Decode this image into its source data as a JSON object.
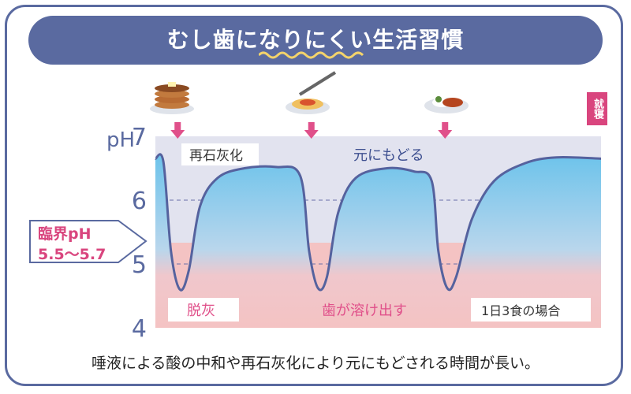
{
  "title": "むし歯になりにくい生活習慣",
  "caption": "唾液による酸の中和や再石灰化により元にもどされる時間が長い。",
  "sleep_label": "就寝",
  "critical": {
    "line1": "臨界pH",
    "line2": "5.5〜5.7"
  },
  "labels": {
    "remineralization": "再石灰化",
    "restore": "元にもどる",
    "demineralization": "脱灰",
    "dissolve": "歯が溶け出す",
    "meals": "1日3食の場合"
  },
  "axis": {
    "ph_prefix": "pH"
  },
  "meal_icons": [
    "pancake-icon",
    "spaghetti-icon",
    "curry-plate-icon"
  ],
  "colors": {
    "frame": "#5a6aa0",
    "curve": "#55629e",
    "safe_zone": "#e2e3ef",
    "danger_zone": "#f4c3c3",
    "fill_top": "#6cc3eb",
    "fill_bottom": "#f4c3c3",
    "accent_pink": "#e0508a"
  },
  "chart_data": {
    "type": "line",
    "ylabel": "pH",
    "yticks": [
      7,
      6,
      5,
      4
    ],
    "ylim": [
      4,
      7
    ],
    "critical_ph": [
      5.5,
      5.7
    ],
    "meal_times": [
      0.05,
      0.35,
      0.65
    ],
    "series": [
      {
        "values": [
          [
            0.0,
            6.65
          ],
          [
            0.018,
            6.6
          ],
          [
            0.035,
            5.2
          ],
          [
            0.055,
            4.6
          ],
          [
            0.075,
            4.9
          ],
          [
            0.1,
            5.9
          ],
          [
            0.14,
            6.35
          ],
          [
            0.2,
            6.5
          ],
          [
            0.27,
            6.52
          ],
          [
            0.325,
            6.38
          ],
          [
            0.345,
            5.2
          ],
          [
            0.365,
            4.62
          ],
          [
            0.385,
            4.8
          ],
          [
            0.41,
            5.8
          ],
          [
            0.45,
            6.35
          ],
          [
            0.52,
            6.5
          ],
          [
            0.58,
            6.45
          ],
          [
            0.62,
            6.3
          ],
          [
            0.635,
            5.2
          ],
          [
            0.655,
            4.62
          ],
          [
            0.675,
            4.8
          ],
          [
            0.71,
            5.7
          ],
          [
            0.76,
            6.3
          ],
          [
            0.83,
            6.58
          ],
          [
            0.9,
            6.67
          ],
          [
            1.0,
            6.65
          ]
        ]
      }
    ]
  }
}
